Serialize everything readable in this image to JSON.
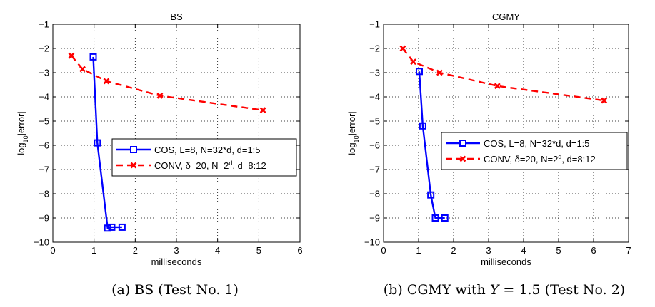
{
  "chart_data": [
    {
      "type": "line",
      "title": "BS",
      "xlabel": "milliseconds",
      "ylabel_base": "log",
      "ylabel_sub": "10",
      "ylabel_rest": "|error|",
      "xlim": [
        0,
        6
      ],
      "ylim": [
        -10,
        -1
      ],
      "xticks": [
        0,
        1,
        2,
        3,
        4,
        5,
        6
      ],
      "yticks": [
        -10,
        -9,
        -8,
        -7,
        -6,
        -5,
        -4,
        -3,
        -2,
        -1
      ],
      "grid": true,
      "legend_position": "center-right",
      "series": [
        {
          "name": "COS, L=8, N=32*d, d=1:5",
          "color": "#0000ff",
          "linestyle": "solid",
          "marker": "square",
          "x": [
            0.98,
            1.08,
            1.33,
            1.43,
            1.68
          ],
          "y": [
            -2.35,
            -5.9,
            -9.42,
            -9.38,
            -9.38
          ]
        },
        {
          "name_html": "CONV, δ=20, N=2<tspan baseline-shift=\"super\" font-size=\"9\">d</tspan>, d=8:12",
          "name_parts": [
            "CONV, δ=20, N=2",
            "d",
            ", d=8:12"
          ],
          "color": "#ff0000",
          "linestyle": "dashed",
          "marker": "x",
          "x": [
            0.45,
            0.72,
            1.3,
            2.6,
            5.1
          ],
          "y": [
            -2.3,
            -2.85,
            -3.35,
            -3.95,
            -4.55
          ]
        }
      ]
    },
    {
      "type": "line",
      "title": "CGMY",
      "xlabel": "milliseconds",
      "ylabel_base": "log",
      "ylabel_sub": "10",
      "ylabel_rest": "|error|",
      "xlim": [
        0,
        7
      ],
      "ylim": [
        -10,
        -1
      ],
      "xticks": [
        0,
        1,
        2,
        3,
        4,
        5,
        6,
        7
      ],
      "yticks": [
        -10,
        -9,
        -8,
        -7,
        -6,
        -5,
        -4,
        -3,
        -2,
        -1
      ],
      "grid": true,
      "legend_position": "center-right",
      "series": [
        {
          "name": "COS, L=8, N=32*d, d=1:5",
          "color": "#0000ff",
          "linestyle": "solid",
          "marker": "square",
          "x": [
            1.02,
            1.12,
            1.35,
            1.48,
            1.75
          ],
          "y": [
            -2.95,
            -5.2,
            -8.05,
            -9.0,
            -9.0
          ]
        },
        {
          "name_parts": [
            "CONV, δ=20, N=2",
            "d",
            ", d=8:12"
          ],
          "color": "#ff0000",
          "linestyle": "dashed",
          "marker": "x",
          "x": [
            0.55,
            0.85,
            1.6,
            3.25,
            6.3
          ],
          "y": [
            -2.0,
            -2.55,
            -3.0,
            -3.55,
            -4.15
          ]
        }
      ]
    }
  ],
  "captions": [
    {
      "text": "(a) BS (Test No. 1)"
    },
    {
      "prefix": "(b) CGMY with ",
      "var": "Y",
      "suffix": " = 1.5 (Test No. 2)"
    }
  ]
}
